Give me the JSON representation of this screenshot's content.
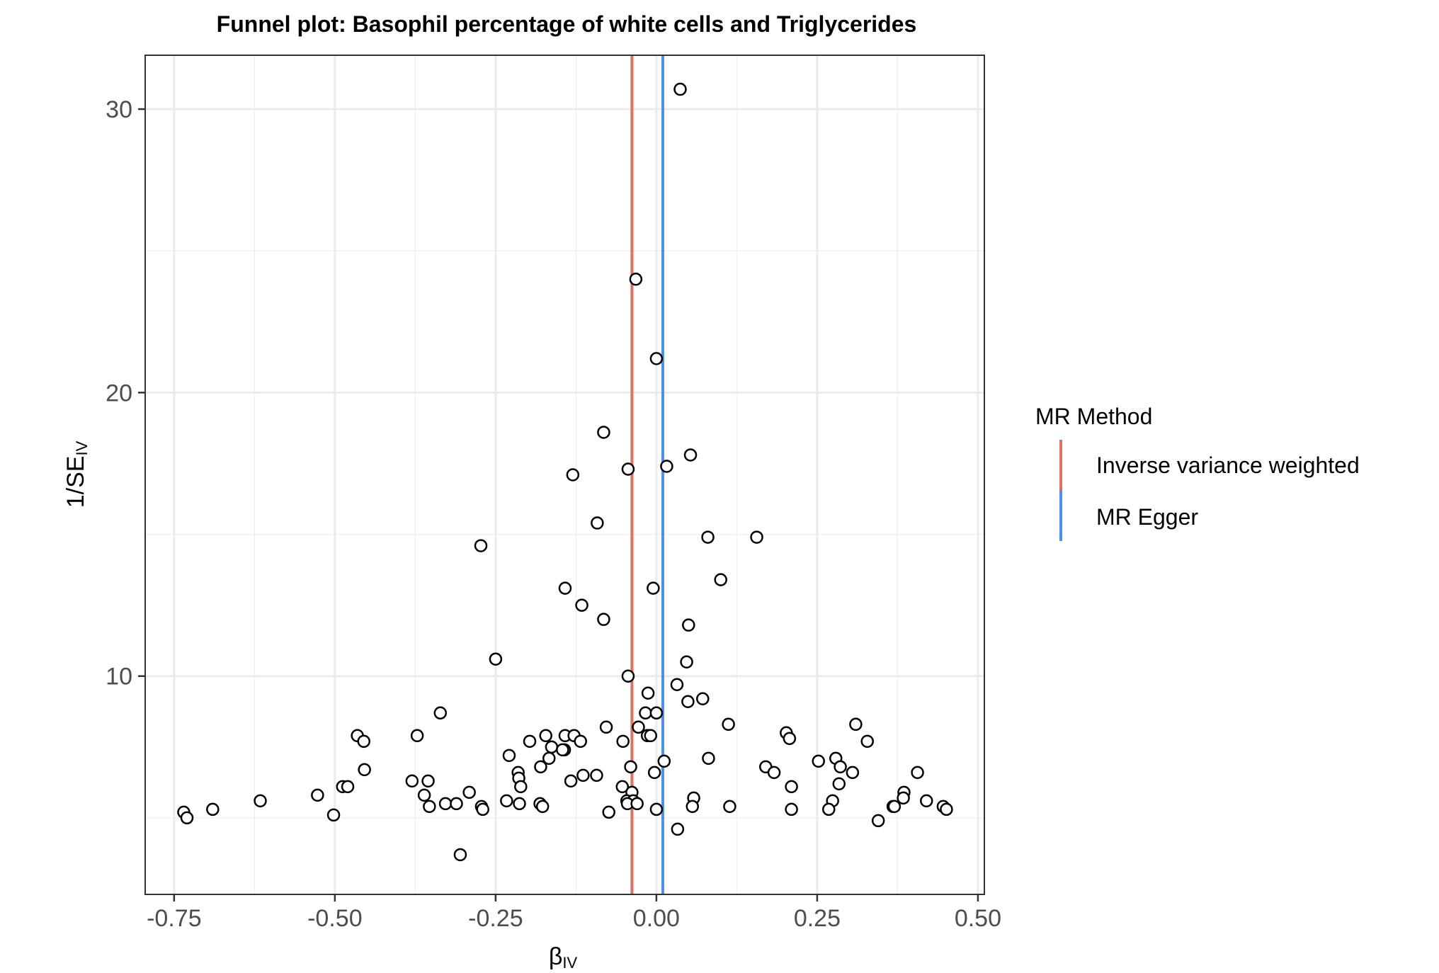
{
  "chart_data": {
    "type": "scatter",
    "title": "Funnel plot: Basophil percentage of white cells and Triglycerides",
    "xlabel": {
      "main": "β",
      "sub": "IV"
    },
    "ylabel": {
      "prefix": "1/SE",
      "sub": "IV"
    },
    "xlim": [
      -0.795,
      0.51
    ],
    "ylim": [
      2.3,
      31.9
    ],
    "x_ticks": [
      -0.75,
      -0.5,
      -0.25,
      0.0,
      0.25,
      0.5
    ],
    "x_tick_labels": [
      "-0.75",
      "-0.50",
      "-0.25",
      "0.00",
      "0.25",
      "0.50"
    ],
    "y_ticks": [
      10,
      20,
      30
    ],
    "y_tick_labels": [
      "10",
      "20",
      "30"
    ],
    "grid": true,
    "legend": {
      "title": "MR Method",
      "placement": "right",
      "entries": [
        {
          "label": "Inverse variance weighted",
          "color": "#e0705f"
        },
        {
          "label": "MR Egger",
          "color": "#4f8fe9"
        }
      ]
    },
    "vlines": [
      {
        "method": "Inverse variance weighted",
        "x": -0.038,
        "color": "#e0705f"
      },
      {
        "method": "MR Egger",
        "x": 0.01,
        "color": "#4f8fe9"
      }
    ],
    "points": [
      {
        "x": 0.037,
        "y": 30.7
      },
      {
        "x": -0.032,
        "y": 24.0
      },
      {
        "x": 0.0,
        "y": 21.2
      },
      {
        "x": -0.082,
        "y": 18.6
      },
      {
        "x": 0.053,
        "y": 17.8
      },
      {
        "x": -0.044,
        "y": 17.3
      },
      {
        "x": 0.016,
        "y": 17.4
      },
      {
        "x": -0.13,
        "y": 17.1
      },
      {
        "x": -0.092,
        "y": 15.4
      },
      {
        "x": 0.08,
        "y": 14.9
      },
      {
        "x": 0.156,
        "y": 14.9
      },
      {
        "x": -0.273,
        "y": 14.6
      },
      {
        "x": 0.1,
        "y": 13.4
      },
      {
        "x": -0.142,
        "y": 13.1
      },
      {
        "x": -0.005,
        "y": 13.1
      },
      {
        "x": -0.116,
        "y": 12.5
      },
      {
        "x": -0.082,
        "y": 12.0
      },
      {
        "x": 0.05,
        "y": 11.8
      },
      {
        "x": -0.25,
        "y": 10.6
      },
      {
        "x": 0.047,
        "y": 10.5
      },
      {
        "x": -0.044,
        "y": 10.0
      },
      {
        "x": 0.032,
        "y": 9.7
      },
      {
        "x": -0.013,
        "y": 9.4
      },
      {
        "x": 0.072,
        "y": 9.2
      },
      {
        "x": 0.049,
        "y": 9.1
      },
      {
        "x": -0.336,
        "y": 8.7
      },
      {
        "x": -0.017,
        "y": 8.7
      },
      {
        "x": 0.0,
        "y": 8.7
      },
      {
        "x": 0.112,
        "y": 8.3
      },
      {
        "x": 0.31,
        "y": 8.3
      },
      {
        "x": -0.078,
        "y": 8.2
      },
      {
        "x": -0.028,
        "y": 8.2
      },
      {
        "x": 0.202,
        "y": 8.0
      },
      {
        "x": -0.465,
        "y": 7.9
      },
      {
        "x": -0.372,
        "y": 7.9
      },
      {
        "x": -0.172,
        "y": 7.9
      },
      {
        "x": -0.142,
        "y": 7.9
      },
      {
        "x": -0.128,
        "y": 7.9
      },
      {
        "x": -0.014,
        "y": 7.9
      },
      {
        "x": -0.009,
        "y": 7.9
      },
      {
        "x": 0.207,
        "y": 7.8
      },
      {
        "x": -0.455,
        "y": 7.7
      },
      {
        "x": -0.197,
        "y": 7.7
      },
      {
        "x": -0.118,
        "y": 7.7
      },
      {
        "x": -0.052,
        "y": 7.7
      },
      {
        "x": 0.328,
        "y": 7.7
      },
      {
        "x": -0.163,
        "y": 7.5
      },
      {
        "x": -0.143,
        "y": 7.4
      },
      {
        "x": -0.146,
        "y": 7.4
      },
      {
        "x": -0.229,
        "y": 7.2
      },
      {
        "x": -0.167,
        "y": 7.1
      },
      {
        "x": 0.081,
        "y": 7.1
      },
      {
        "x": 0.279,
        "y": 7.1
      },
      {
        "x": 0.252,
        "y": 7.0
      },
      {
        "x": 0.012,
        "y": 7.0
      },
      {
        "x": -0.18,
        "y": 6.8
      },
      {
        "x": -0.04,
        "y": 6.8
      },
      {
        "x": 0.17,
        "y": 6.8
      },
      {
        "x": 0.286,
        "y": 6.8
      },
      {
        "x": -0.454,
        "y": 6.7
      },
      {
        "x": -0.215,
        "y": 6.6
      },
      {
        "x": -0.003,
        "y": 6.6
      },
      {
        "x": 0.183,
        "y": 6.6
      },
      {
        "x": 0.305,
        "y": 6.6
      },
      {
        "x": 0.406,
        "y": 6.6
      },
      {
        "x": -0.114,
        "y": 6.5
      },
      {
        "x": -0.093,
        "y": 6.5
      },
      {
        "x": -0.214,
        "y": 6.4
      },
      {
        "x": -0.38,
        "y": 6.3
      },
      {
        "x": -0.355,
        "y": 6.3
      },
      {
        "x": -0.133,
        "y": 6.3
      },
      {
        "x": 0.284,
        "y": 6.2
      },
      {
        "x": -0.488,
        "y": 6.1
      },
      {
        "x": -0.48,
        "y": 6.1
      },
      {
        "x": -0.211,
        "y": 6.1
      },
      {
        "x": -0.053,
        "y": 6.1
      },
      {
        "x": 0.21,
        "y": 6.1
      },
      {
        "x": -0.291,
        "y": 5.9
      },
      {
        "x": -0.038,
        "y": 5.9
      },
      {
        "x": 0.385,
        "y": 5.9
      },
      {
        "x": -0.527,
        "y": 5.8
      },
      {
        "x": -0.361,
        "y": 5.8
      },
      {
        "x": 0.058,
        "y": 5.7
      },
      {
        "x": -0.616,
        "y": 5.6
      },
      {
        "x": -0.233,
        "y": 5.6
      },
      {
        "x": -0.046,
        "y": 5.6
      },
      {
        "x": -0.036,
        "y": 5.6
      },
      {
        "x": 0.384,
        "y": 5.7
      },
      {
        "x": 0.42,
        "y": 5.6
      },
      {
        "x": 0.274,
        "y": 5.6
      },
      {
        "x": -0.328,
        "y": 5.5
      },
      {
        "x": -0.311,
        "y": 5.5
      },
      {
        "x": -0.181,
        "y": 5.5
      },
      {
        "x": -0.045,
        "y": 5.5
      },
      {
        "x": -0.03,
        "y": 5.5
      },
      {
        "x": -0.213,
        "y": 5.5
      },
      {
        "x": -0.177,
        "y": 5.4
      },
      {
        "x": -0.353,
        "y": 5.4
      },
      {
        "x": -0.272,
        "y": 5.4
      },
      {
        "x": 0.056,
        "y": 5.4
      },
      {
        "x": 0.114,
        "y": 5.4
      },
      {
        "x": 0.368,
        "y": 5.4
      },
      {
        "x": 0.37,
        "y": 5.4
      },
      {
        "x": 0.446,
        "y": 5.4
      },
      {
        "x": 0.0,
        "y": 5.3
      },
      {
        "x": 0.268,
        "y": 5.3
      },
      {
        "x": -0.69,
        "y": 5.3
      },
      {
        "x": -0.27,
        "y": 5.3
      },
      {
        "x": 0.21,
        "y": 5.3
      },
      {
        "x": 0.451,
        "y": 5.3
      },
      {
        "x": -0.735,
        "y": 5.2
      },
      {
        "x": -0.074,
        "y": 5.2
      },
      {
        "x": -0.502,
        "y": 5.1
      },
      {
        "x": -0.73,
        "y": 5.0
      },
      {
        "x": 0.345,
        "y": 4.9
      },
      {
        "x": 0.033,
        "y": 4.6
      },
      {
        "x": -0.305,
        "y": 3.7
      }
    ]
  }
}
